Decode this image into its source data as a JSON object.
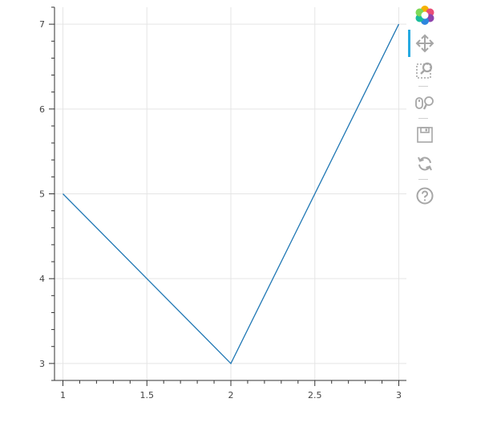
{
  "chart_data": {
    "type": "line",
    "x": [
      1,
      2,
      3
    ],
    "series": [
      {
        "values": [
          5,
          3,
          7
        ],
        "color": "#1f77b4"
      }
    ],
    "xlim": [
      0.95,
      3.05
    ],
    "ylim": [
      2.8,
      7.2
    ],
    "x_ticks": [
      {
        "value": 1,
        "label": "1"
      },
      {
        "value": 1.5,
        "label": "1.5"
      },
      {
        "value": 2,
        "label": "2"
      },
      {
        "value": 2.5,
        "label": "2.5"
      },
      {
        "value": 3,
        "label": "3"
      }
    ],
    "y_ticks": [
      {
        "value": 3,
        "label": "3"
      },
      {
        "value": 4,
        "label": "4"
      },
      {
        "value": 5,
        "label": "5"
      },
      {
        "value": 6,
        "label": "6"
      },
      {
        "value": 7,
        "label": "7"
      }
    ],
    "x_minor_step": 0.1,
    "y_minor_step": 0.2,
    "grid": true,
    "title": "",
    "xlabel": "",
    "ylabel": ""
  },
  "toolbar": {
    "tools": [
      {
        "name": "logo-icon"
      },
      {
        "name": "pan-icon",
        "active": true
      },
      {
        "name": "box-zoom-icon"
      },
      {
        "name": "wheel-zoom-icon"
      },
      {
        "name": "save-icon"
      },
      {
        "name": "reset-icon"
      },
      {
        "name": "help-icon"
      }
    ],
    "active_color": "#26aae1",
    "icon_color": "#a6a6a6"
  }
}
